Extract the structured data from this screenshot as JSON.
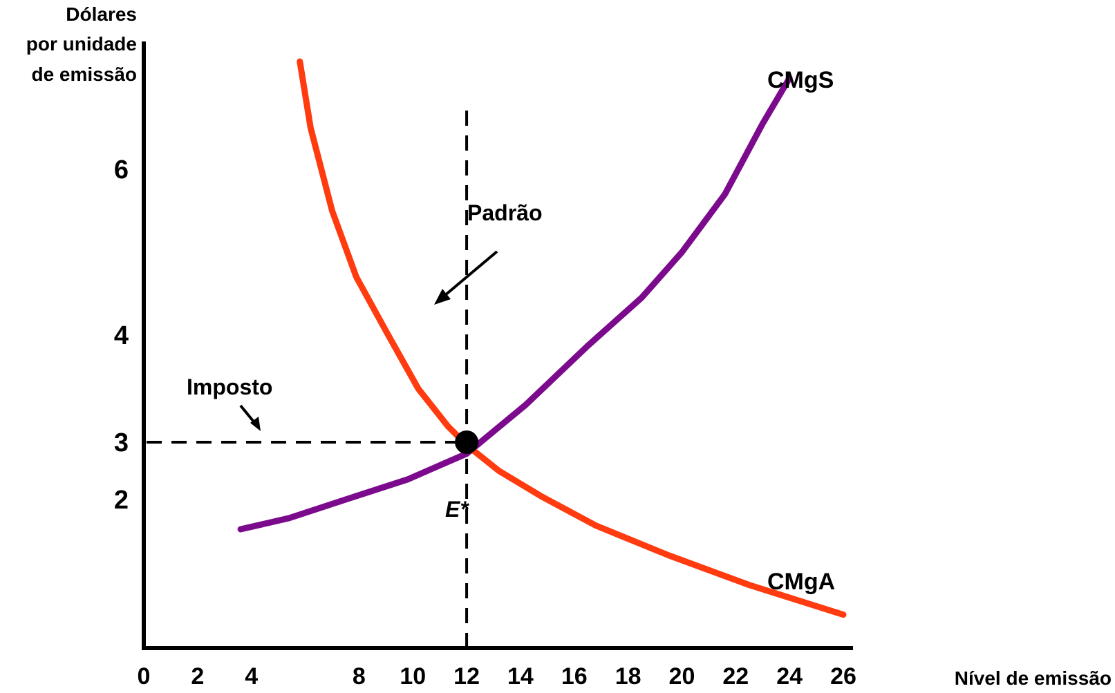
{
  "chart_data": {
    "type": "line",
    "title": "",
    "ylabel": [
      "Dólares",
      "por unidade",
      "de emissão"
    ],
    "xlabel": "Nível de emissão",
    "x_ticks": [
      "0",
      "2",
      "4",
      "8",
      "10",
      "12",
      "14",
      "16",
      "18",
      "20",
      "22",
      "24",
      "26"
    ],
    "y_ticks": [
      {
        "label": "6",
        "value": 6,
        "bold": true
      },
      {
        "label": "4",
        "value": 4,
        "bold": true
      },
      {
        "label": "3",
        "value": 3,
        "bold": false
      },
      {
        "label": "2",
        "value": 2,
        "bold": true
      }
    ],
    "xlim": [
      0,
      26
    ],
    "ylim": [
      0,
      7
    ],
    "grid": false,
    "series": [
      {
        "name": "CMgS",
        "color": "#7B0A8C",
        "x": [
          3.6,
          5.4,
          7.5,
          9.8,
          12.0,
          14.2,
          16.5,
          18.5,
          20.0,
          21.6,
          23.0,
          24.0
        ],
        "y": [
          1.6,
          1.75,
          2.0,
          2.35,
          2.8,
          3.35,
          3.9,
          4.45,
          5.0,
          5.7,
          6.55,
          7.1
        ]
      },
      {
        "name": "CMgA",
        "color": "#FF3B0F",
        "x": [
          5.8,
          6.2,
          7.0,
          7.9,
          9.0,
          10.2,
          11.3,
          12.0,
          13.2,
          14.8,
          16.8,
          19.5,
          22.5,
          26.0
        ],
        "y": [
          7.3,
          6.5,
          5.5,
          4.7,
          4.05,
          3.5,
          3.15,
          2.95,
          2.5,
          2.05,
          1.65,
          1.25,
          0.85,
          0.45
        ]
      }
    ],
    "annotations": {
      "padrao": "Padrão",
      "imposto": "Imposto",
      "equilibrium_label": "E*",
      "equilibrium": {
        "x": 12,
        "y": 3
      }
    }
  }
}
